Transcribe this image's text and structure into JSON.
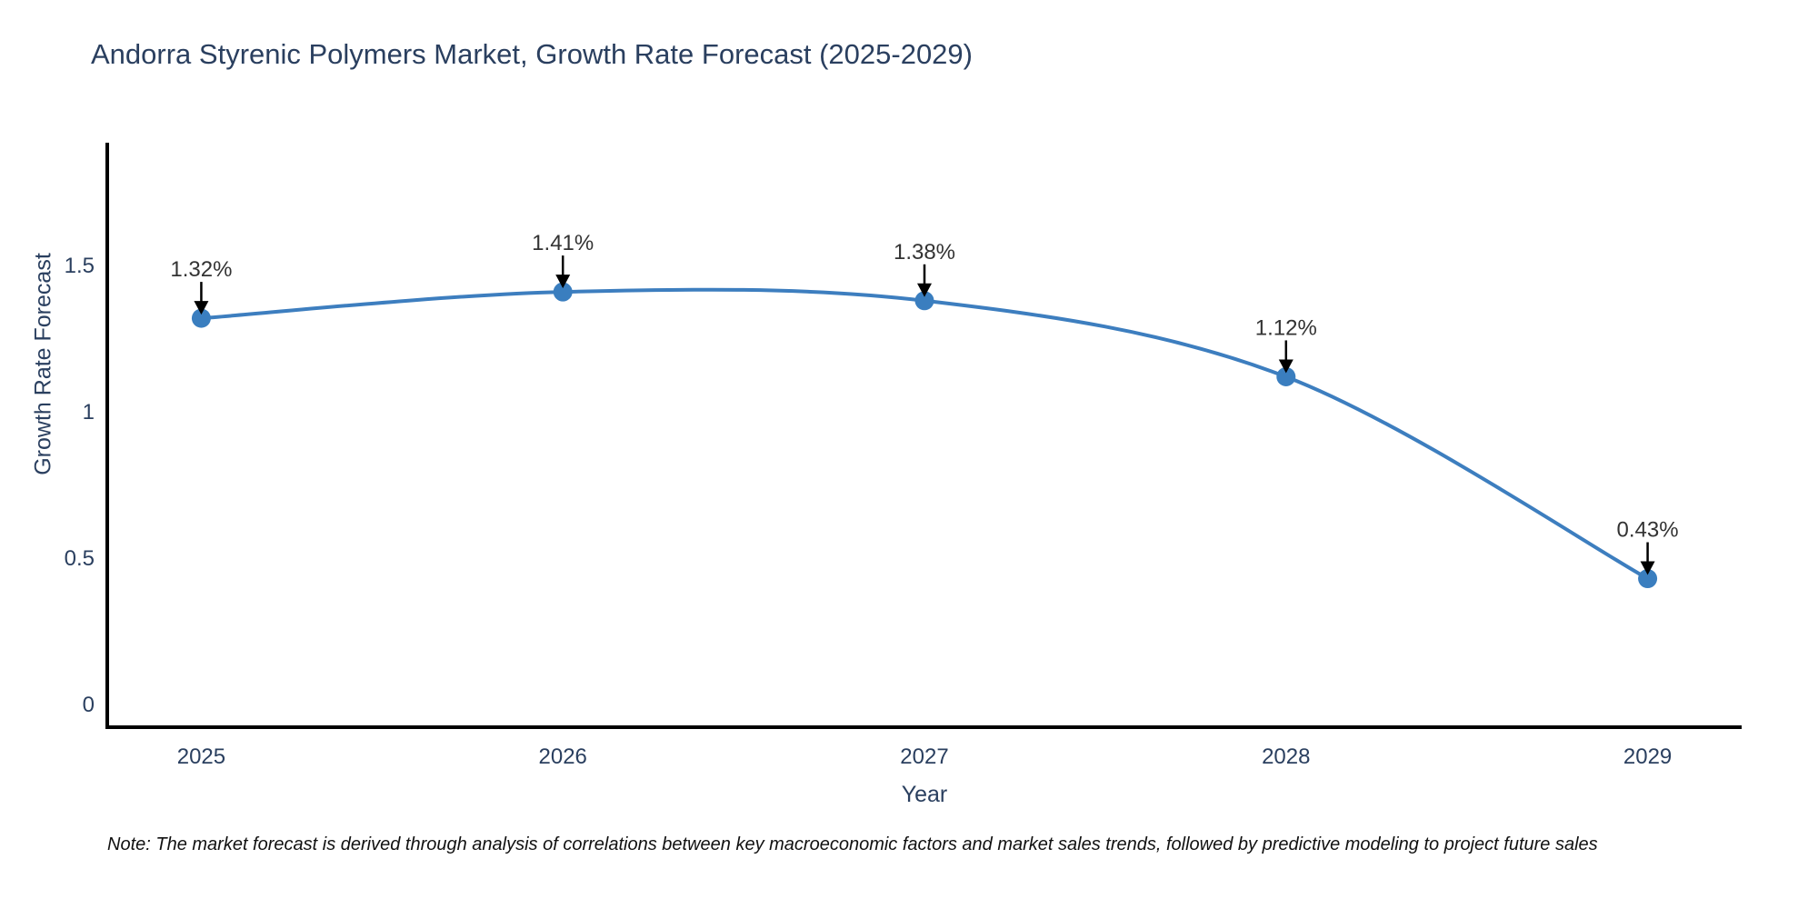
{
  "title": "Andorra Styrenic Polymers Market, Growth Rate Forecast (2025-2029)",
  "note": "Note: The market forecast is derived through analysis of correlations between key macroeconomic factors and market sales trends, followed by predictive modeling to project future sales",
  "chart_data": {
    "type": "line",
    "title": "Andorra Styrenic Polymers Market, Growth Rate Forecast (2025-2029)",
    "xlabel": "Year",
    "ylabel": "Growth Rate Forecast",
    "x": [
      2025,
      2026,
      2027,
      2028,
      2029
    ],
    "values": [
      1.32,
      1.41,
      1.38,
      1.12,
      0.43
    ],
    "point_labels": [
      "1.32%",
      "1.41%",
      "1.38%",
      "1.12%",
      "0.43%"
    ],
    "xtick_labels": [
      "2025",
      "2026",
      "2027",
      "2028",
      "2029"
    ],
    "ytick_values": [
      0,
      0.5,
      1,
      1.5
    ],
    "ytick_labels": [
      "0",
      "0.5",
      "1",
      "1.5"
    ],
    "xlim": [
      2024.74,
      2029.26
    ],
    "ylim": [
      -0.078,
      1.92
    ],
    "grid": false,
    "legend": "none",
    "line_shape": "spline",
    "colors": {
      "line": "#3d7ebf",
      "marker": "#3a7ebf",
      "axis": "#000000",
      "tick_text": "#2a3f5f",
      "annotation_text": "#333333",
      "annotation_arrow": "#000000",
      "title_text": "#2a3f5f"
    }
  }
}
